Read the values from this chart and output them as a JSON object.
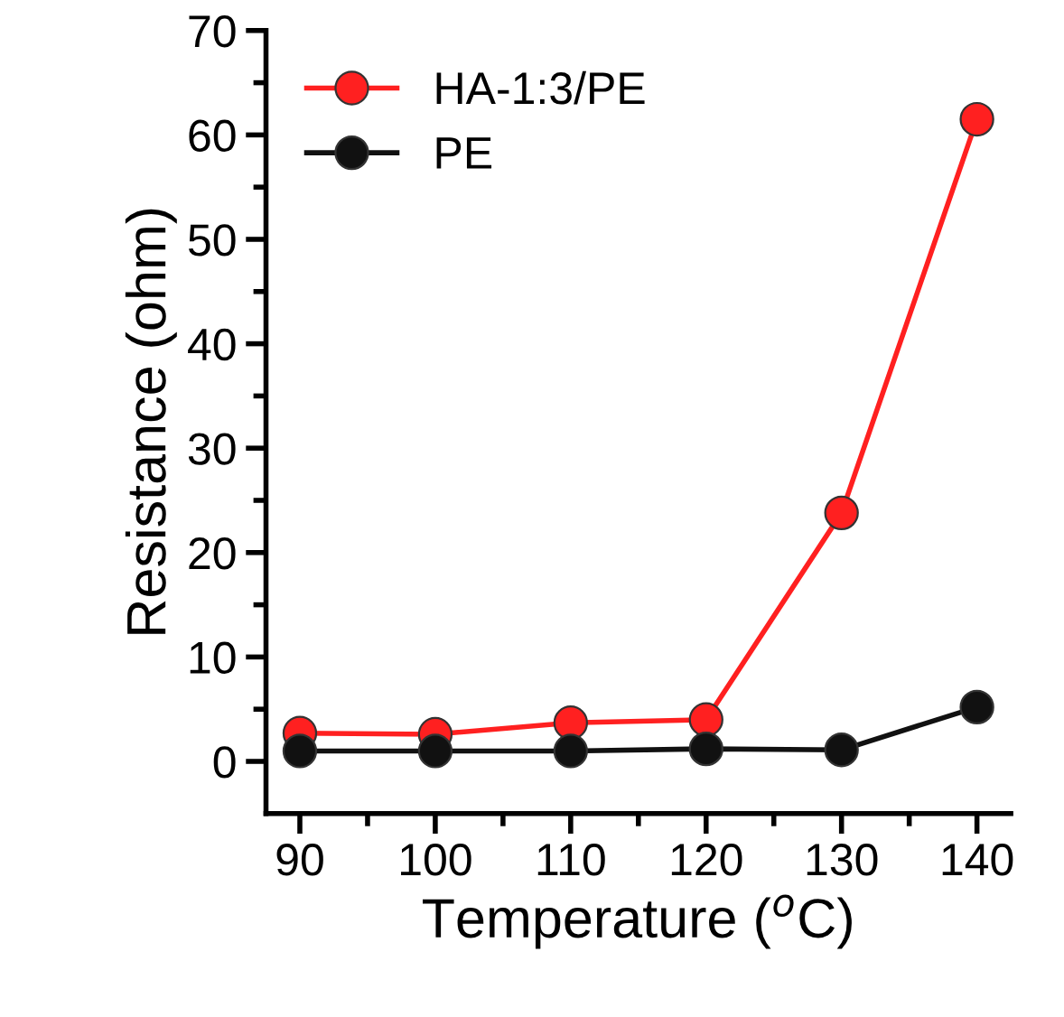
{
  "chart_data": {
    "type": "line",
    "xlabel": "Temperature ($^{o}$C)",
    "ylabel": "Resistance (ohm)",
    "x": [
      90,
      100,
      110,
      120,
      130,
      140
    ],
    "series": [
      {
        "name": "HA-1:3/PE",
        "color": "#ff2020",
        "values": [
          2.7,
          2.6,
          3.7,
          4.0,
          23.8,
          61.5
        ]
      },
      {
        "name": "PE",
        "color": "#111111",
        "values": [
          1.0,
          1.0,
          1.0,
          1.2,
          1.1,
          5.2
        ]
      }
    ],
    "xlim": [
      87.5,
      142.5
    ],
    "xticks": [
      90,
      100,
      110,
      120,
      130,
      140
    ],
    "ylim": [
      -5,
      70
    ],
    "yticks": [
      0,
      10,
      20,
      30,
      40,
      50,
      60,
      70
    ],
    "marker": "circle",
    "line_style": "solid",
    "legend": "top left",
    "grid": false
  }
}
